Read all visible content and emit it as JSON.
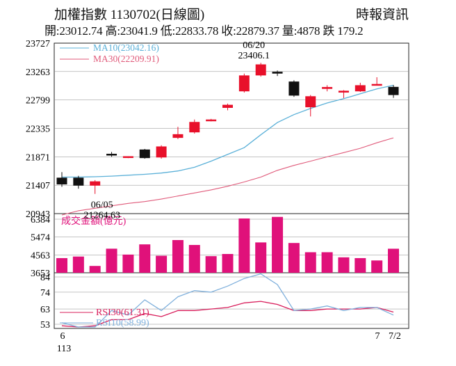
{
  "header": {
    "title": "加權指數 1130702(日線圖)",
    "source": "時報資訊",
    "stats": "開:23012.74 高:23041.9 低:22833.78 收:22879.37 量:4878 跌 179.2"
  },
  "colors": {
    "up": "#e8102a",
    "down": "#111111",
    "ma10": "#5ab0d8",
    "ma30": "#e05a7a",
    "volume": "#e0117a",
    "rsi_red": "#d81c5a",
    "rsi_blue": "#7fb0dc",
    "axis": "#222222",
    "grid": "#888888"
  },
  "chart_data": [
    {
      "type": "candlestick",
      "panel": "price",
      "y_ticks": [
        "23727",
        "23263",
        "22799",
        "22335",
        "21871",
        "21407",
        "20943"
      ],
      "ylim": [
        20943,
        23727
      ],
      "x_labels": [
        "6",
        "113",
        "7",
        "7/2"
      ],
      "candles": [
        {
          "open": 21530,
          "high": 21620,
          "low": 21380,
          "close": 21420
        },
        {
          "open": 21530,
          "high": 21560,
          "low": 21350,
          "close": 21400
        },
        {
          "open": 21400,
          "high": 21490,
          "low": 21265,
          "close": 21470
        },
        {
          "open": 21920,
          "high": 21950,
          "low": 21870,
          "close": 21900
        },
        {
          "open": 21860,
          "high": 21880,
          "low": 21850,
          "close": 21880
        },
        {
          "open": 21990,
          "high": 22000,
          "low": 21840,
          "close": 21850
        },
        {
          "open": 21860,
          "high": 22060,
          "low": 21840,
          "close": 22040
        },
        {
          "open": 22180,
          "high": 22360,
          "low": 22160,
          "close": 22240
        },
        {
          "open": 22270,
          "high": 22480,
          "low": 22250,
          "close": 22440
        },
        {
          "open": 22460,
          "high": 22490,
          "low": 22450,
          "close": 22480
        },
        {
          "open": 22670,
          "high": 22740,
          "low": 22630,
          "close": 22720
        },
        {
          "open": 22940,
          "high": 23230,
          "low": 22920,
          "close": 23200
        },
        {
          "open": 23200,
          "high": 23406,
          "low": 23180,
          "close": 23380
        },
        {
          "open": 23260,
          "high": 23280,
          "low": 23190,
          "close": 23230
        },
        {
          "open": 23100,
          "high": 23120,
          "low": 22850,
          "close": 22870
        },
        {
          "open": 22680,
          "high": 22880,
          "low": 22530,
          "close": 22860
        },
        {
          "open": 22980,
          "high": 23040,
          "low": 22940,
          "close": 23010
        },
        {
          "open": 22920,
          "high": 22960,
          "low": 22830,
          "close": 22950
        },
        {
          "open": 22940,
          "high": 23080,
          "low": 22930,
          "close": 23040
        },
        {
          "open": 23050,
          "high": 23170,
          "low": 23040,
          "close": 23060
        },
        {
          "open": 23012.74,
          "high": 23041.9,
          "low": 22833.78,
          "close": 22879.37
        }
      ],
      "ma10": {
        "label": "MA10(23042.16)",
        "values": [
          21540,
          21540,
          21545,
          21555,
          21570,
          21585,
          21605,
          21640,
          21700,
          21800,
          21910,
          22020,
          22230,
          22430,
          22560,
          22660,
          22750,
          22820,
          22900,
          22980,
          23040
        ]
      },
      "ma30": {
        "label": "MA30(22209.91)",
        "values": [
          20920,
          20990,
          21030,
          21070,
          21110,
          21140,
          21180,
          21230,
          21280,
          21330,
          21390,
          21460,
          21540,
          21650,
          21730,
          21800,
          21870,
          21940,
          22010,
          22100,
          22180
        ]
      },
      "annotations": [
        {
          "candle": 2,
          "line1": "06/05",
          "line2": "21264.63",
          "position": "below"
        },
        {
          "candle": 12,
          "line1": "06/20",
          "line2": "23406.1",
          "position": "above"
        }
      ]
    },
    {
      "type": "bar",
      "panel": "volume",
      "title": "成交金額(億元)",
      "y_ticks": [
        "6384",
        "5474",
        "4563",
        "3653"
      ],
      "ylim": [
        3653,
        6384
      ],
      "values": [
        4400,
        4480,
        4000,
        4880,
        4580,
        5100,
        4520,
        5320,
        5070,
        4500,
        4610,
        6420,
        5200,
        6500,
        5170,
        4700,
        4700,
        4440,
        4400,
        4280,
        4878
      ]
    },
    {
      "type": "line",
      "panel": "rsi",
      "y_ticks": [
        "84",
        "74",
        "63",
        "53"
      ],
      "ylim": [
        53,
        84
      ],
      "series": [
        {
          "name": "RSI30(61.31)",
          "values": [
            52,
            51,
            52,
            56,
            56,
            60,
            58,
            62,
            62,
            63,
            64,
            67,
            68,
            66,
            62,
            62,
            63,
            63,
            63,
            64,
            61
          ]
        },
        {
          "name": "RSI10(58.99)",
          "values": [
            54,
            50,
            51,
            62,
            59,
            69,
            62,
            71,
            75,
            74,
            78,
            83,
            86,
            79,
            62,
            63,
            65,
            62,
            64,
            64,
            59
          ]
        }
      ]
    }
  ]
}
